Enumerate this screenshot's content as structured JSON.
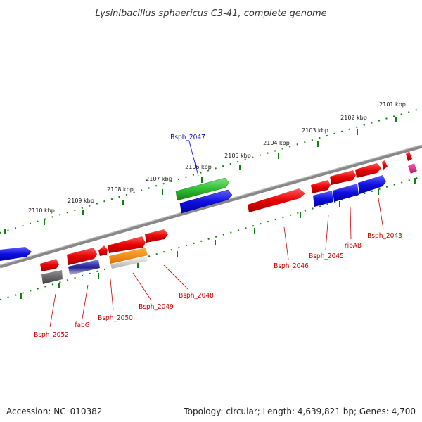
{
  "title": "Lysinibacillus sphaericus C3-41, complete genome",
  "footer": {
    "accession": "Accession: NC_010382",
    "summary": "Topology: circular; Length: 4,639,821 bp; Genes: 4,700"
  },
  "scale_labels": [
    "2101 kbp",
    "2102 kbp",
    "2103 kbp",
    "2104 kbp",
    "2105 kbp",
    "2106 kbp",
    "2107 kbp",
    "2108 kbp",
    "2109 kbp",
    "2110 kbp"
  ],
  "gene_labels": [
    "Bsph_2047",
    "Bsph_2043",
    "ribAB",
    "Bsph_2045",
    "Bsph_2046",
    "Bsph_2048",
    "Bsph_2049",
    "Bsph_2050",
    "fabG",
    "Bsph_2052"
  ],
  "colors": {
    "forward_gene": "#e80000",
    "cds_blue": "#1010e0",
    "rna_green": "#30c030",
    "orange": "#f08000",
    "gray": "#606060",
    "pink": "#e0208a",
    "navy": "#20208a",
    "backbone": "#808080",
    "ticks": "#108010",
    "label_red": "#cc0000",
    "label_blue": "#0000cc"
  }
}
